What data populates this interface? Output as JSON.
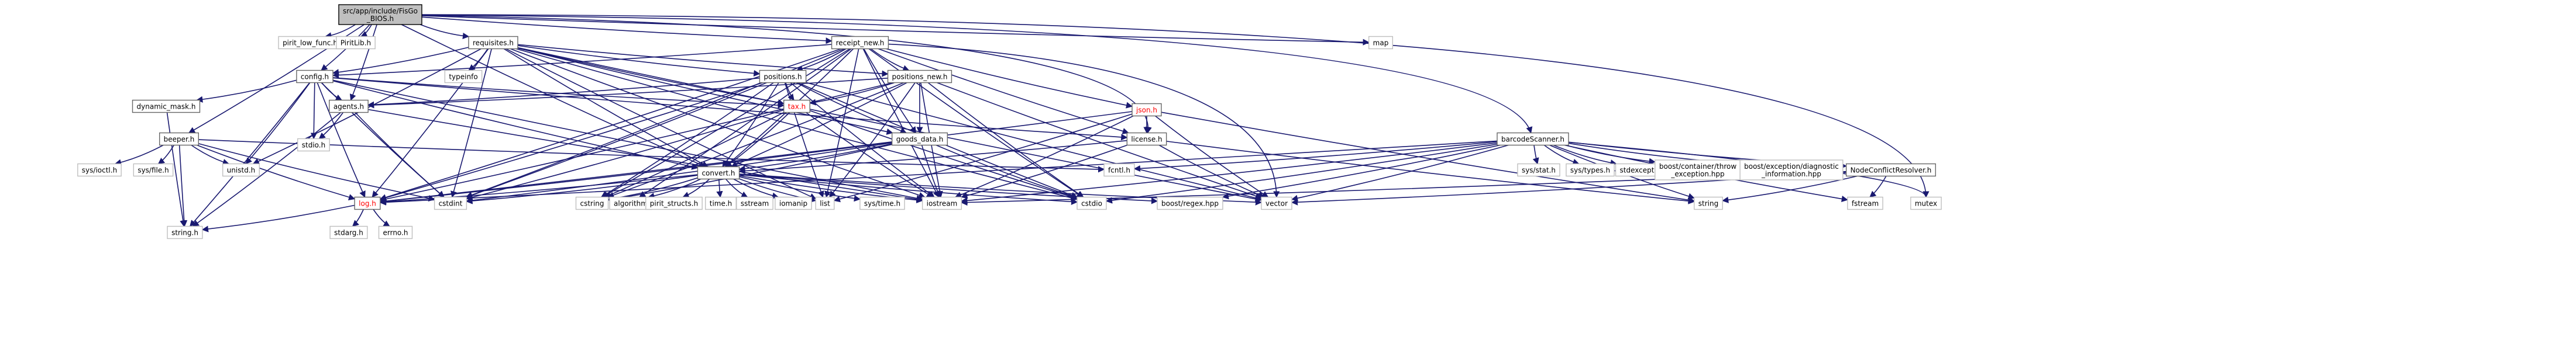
{
  "diagram": {
    "title": "include dependency graph",
    "root": "src/app/include/FisGo_BIOS.h",
    "nodes": [
      {
        "id": "root",
        "lines": [
          "src/app/include/FisGo",
          "_BIOS.h"
        ],
        "kind": "root"
      },
      {
        "id": "pirit_low_func",
        "lines": [
          "pirit_low_func.h"
        ],
        "kind": "external"
      },
      {
        "id": "piritlib",
        "lines": [
          "PiritLib.h"
        ],
        "kind": "external"
      },
      {
        "id": "requisites",
        "lines": [
          "requisites.h"
        ],
        "kind": "file"
      },
      {
        "id": "receipt_new",
        "lines": [
          "receipt_new.h"
        ],
        "kind": "file"
      },
      {
        "id": "map",
        "lines": [
          "map"
        ],
        "kind": "external"
      },
      {
        "id": "config",
        "lines": [
          "config.h"
        ],
        "kind": "file"
      },
      {
        "id": "typeinfo",
        "lines": [
          "typeinfo"
        ],
        "kind": "external"
      },
      {
        "id": "positions",
        "lines": [
          "positions.h"
        ],
        "kind": "file"
      },
      {
        "id": "positions_new",
        "lines": [
          "positions_new.h"
        ],
        "kind": "file"
      },
      {
        "id": "json",
        "lines": [
          "json.h"
        ],
        "kind": "file",
        "red": true
      },
      {
        "id": "barcodescanner",
        "lines": [
          "barcodeScanner.h"
        ],
        "kind": "file"
      },
      {
        "id": "dynamic_mask",
        "lines": [
          "dynamic_mask.h"
        ],
        "kind": "file"
      },
      {
        "id": "agents",
        "lines": [
          "agents.h"
        ],
        "kind": "file"
      },
      {
        "id": "tax",
        "lines": [
          "tax.h"
        ],
        "kind": "file",
        "red": true
      },
      {
        "id": "beeper",
        "lines": [
          "beeper.h"
        ],
        "kind": "file"
      },
      {
        "id": "stdio",
        "lines": [
          "stdio.h"
        ],
        "kind": "external"
      },
      {
        "id": "goods_data",
        "lines": [
          "goods_data.h"
        ],
        "kind": "file"
      },
      {
        "id": "license",
        "lines": [
          "license.h"
        ],
        "kind": "file"
      },
      {
        "id": "sys_ioctl",
        "lines": [
          "sys/ioctl.h"
        ],
        "kind": "external"
      },
      {
        "id": "sys_file",
        "lines": [
          "sys/file.h"
        ],
        "kind": "external"
      },
      {
        "id": "unistd",
        "lines": [
          "unistd.h"
        ],
        "kind": "external"
      },
      {
        "id": "fcntl",
        "lines": [
          "fcntl.h"
        ],
        "kind": "external"
      },
      {
        "id": "convert",
        "lines": [
          "convert.h"
        ],
        "kind": "file"
      },
      {
        "id": "sys_stat",
        "lines": [
          "sys/stat.h"
        ],
        "kind": "external"
      },
      {
        "id": "sys_types",
        "lines": [
          "sys/types.h"
        ],
        "kind": "external"
      },
      {
        "id": "stdexcept",
        "lines": [
          "stdexcept"
        ],
        "kind": "external"
      },
      {
        "id": "boost_throw",
        "lines": [
          "boost/container/throw",
          "_exception.hpp"
        ],
        "kind": "external"
      },
      {
        "id": "boost_diag",
        "lines": [
          "boost/exception/diagnostic",
          "_information.hpp"
        ],
        "kind": "external"
      },
      {
        "id": "nodeconflict",
        "lines": [
          "NodeConflictResolver.h"
        ],
        "kind": "file"
      },
      {
        "id": "log",
        "lines": [
          "log.h"
        ],
        "kind": "file",
        "red": true
      },
      {
        "id": "cstdint",
        "lines": [
          "cstdint"
        ],
        "kind": "external"
      },
      {
        "id": "cstring",
        "lines": [
          "cstring"
        ],
        "kind": "external"
      },
      {
        "id": "algorithm",
        "lines": [
          "algorithm"
        ],
        "kind": "external"
      },
      {
        "id": "pirit_structs",
        "lines": [
          "pirit_structs.h"
        ],
        "kind": "external"
      },
      {
        "id": "time",
        "lines": [
          "time.h"
        ],
        "kind": "external"
      },
      {
        "id": "sstream",
        "lines": [
          "sstream"
        ],
        "kind": "external"
      },
      {
        "id": "iomanip",
        "lines": [
          "iomanip"
        ],
        "kind": "external"
      },
      {
        "id": "list",
        "lines": [
          "list"
        ],
        "kind": "external"
      },
      {
        "id": "sys_time",
        "lines": [
          "sys/time.h"
        ],
        "kind": "external"
      },
      {
        "id": "iostream",
        "lines": [
          "iostream"
        ],
        "kind": "external"
      },
      {
        "id": "cstdio",
        "lines": [
          "cstdio"
        ],
        "kind": "external"
      },
      {
        "id": "boost_regex",
        "lines": [
          "boost/regex.hpp"
        ],
        "kind": "external"
      },
      {
        "id": "vector",
        "lines": [
          "vector"
        ],
        "kind": "external"
      },
      {
        "id": "string",
        "lines": [
          "string"
        ],
        "kind": "external"
      },
      {
        "id": "fstream",
        "lines": [
          "fstream"
        ],
        "kind": "external"
      },
      {
        "id": "mutex",
        "lines": [
          "mutex"
        ],
        "kind": "external"
      },
      {
        "id": "string_h",
        "lines": [
          "string.h"
        ],
        "kind": "external"
      },
      {
        "id": "stdarg",
        "lines": [
          "stdarg.h"
        ],
        "kind": "external"
      },
      {
        "id": "errno",
        "lines": [
          "errno.h"
        ],
        "kind": "external"
      }
    ],
    "edges": [
      [
        "root",
        "pirit_low_func"
      ],
      [
        "root",
        "piritlib"
      ],
      [
        "root",
        "requisites"
      ],
      [
        "root",
        "receipt_new"
      ],
      [
        "root",
        "map"
      ],
      [
        "root",
        "config"
      ],
      [
        "root",
        "agents"
      ],
      [
        "root",
        "beeper"
      ],
      [
        "root",
        "license"
      ],
      [
        "root",
        "barcodescanner"
      ],
      [
        "root",
        "mutex"
      ],
      [
        "root",
        "convert"
      ],
      [
        "requisites",
        "config"
      ],
      [
        "requisites",
        "typeinfo"
      ],
      [
        "requisites",
        "positions"
      ],
      [
        "requisites",
        "positions_new"
      ],
      [
        "requisites",
        "goods_data"
      ],
      [
        "requisites",
        "tax"
      ],
      [
        "requisites",
        "log"
      ],
      [
        "requisites",
        "cstdint"
      ],
      [
        "requisites",
        "unistd"
      ],
      [
        "requisites",
        "list"
      ],
      [
        "requisites",
        "iostream"
      ],
      [
        "requisites",
        "cstdio"
      ],
      [
        "requisites",
        "vector"
      ],
      [
        "requisites",
        "convert"
      ],
      [
        "receipt_new",
        "config"
      ],
      [
        "receipt_new",
        "positions"
      ],
      [
        "receipt_new",
        "positions_new"
      ],
      [
        "receipt_new",
        "json"
      ],
      [
        "receipt_new",
        "goods_data"
      ],
      [
        "receipt_new",
        "license"
      ],
      [
        "receipt_new",
        "convert"
      ],
      [
        "receipt_new",
        "log"
      ],
      [
        "receipt_new",
        "cstdint"
      ],
      [
        "receipt_new",
        "cstring"
      ],
      [
        "receipt_new",
        "list"
      ],
      [
        "receipt_new",
        "iostream"
      ],
      [
        "receipt_new",
        "cstdio"
      ],
      [
        "receipt_new",
        "vector"
      ],
      [
        "receipt_new",
        "algorithm"
      ],
      [
        "config",
        "dynamic_mask"
      ],
      [
        "config",
        "agents"
      ],
      [
        "config",
        "stdio"
      ],
      [
        "config",
        "unistd"
      ],
      [
        "config",
        "tax"
      ],
      [
        "config",
        "log"
      ],
      [
        "config",
        "convert"
      ],
      [
        "config",
        "cstdint"
      ],
      [
        "config",
        "iostream"
      ],
      [
        "config",
        "string_h"
      ],
      [
        "config",
        "license"
      ],
      [
        "dynamic_mask",
        "string_h"
      ],
      [
        "agents",
        "stdio"
      ],
      [
        "agents",
        "cstdint"
      ],
      [
        "agents",
        "iostream"
      ],
      [
        "agents",
        "string_h"
      ],
      [
        "positions",
        "tax"
      ],
      [
        "positions",
        "goods_data"
      ],
      [
        "positions",
        "convert"
      ],
      [
        "positions",
        "log"
      ],
      [
        "positions",
        "cstring"
      ],
      [
        "positions",
        "list"
      ],
      [
        "positions",
        "iostream"
      ],
      [
        "positions",
        "cstdint"
      ],
      [
        "positions",
        "vector"
      ],
      [
        "positions",
        "agents"
      ],
      [
        "positions",
        "cstdio"
      ],
      [
        "positions_new",
        "tax"
      ],
      [
        "positions_new",
        "goods_data"
      ],
      [
        "positions_new",
        "convert"
      ],
      [
        "positions_new",
        "log"
      ],
      [
        "positions_new",
        "iostream"
      ],
      [
        "positions_new",
        "vector"
      ],
      [
        "positions_new",
        "agents"
      ],
      [
        "positions_new",
        "cstdio"
      ],
      [
        "positions_new",
        "list"
      ],
      [
        "positions_new",
        "cstring"
      ],
      [
        "tax",
        "convert"
      ],
      [
        "tax",
        "cstring"
      ],
      [
        "tax",
        "iostream"
      ],
      [
        "tax",
        "cstdint"
      ],
      [
        "tax",
        "cstdio"
      ],
      [
        "json",
        "license"
      ],
      [
        "json",
        "log"
      ],
      [
        "json",
        "iostream"
      ],
      [
        "json",
        "string"
      ],
      [
        "json",
        "vector"
      ],
      [
        "json",
        "list"
      ],
      [
        "beeper",
        "sys_ioctl"
      ],
      [
        "beeper",
        "sys_file"
      ],
      [
        "beeper",
        "unistd"
      ],
      [
        "beeper",
        "fcntl"
      ],
      [
        "beeper",
        "log"
      ],
      [
        "beeper",
        "string_h"
      ],
      [
        "beeper",
        "cstdint"
      ],
      [
        "goods_data",
        "convert"
      ],
      [
        "goods_data",
        "log"
      ],
      [
        "goods_data",
        "iostream"
      ],
      [
        "goods_data",
        "cstring"
      ],
      [
        "goods_data",
        "cstdint"
      ],
      [
        "goods_data",
        "cstdio"
      ],
      [
        "license",
        "convert"
      ],
      [
        "license",
        "iostream"
      ],
      [
        "license",
        "vector"
      ],
      [
        "license",
        "string"
      ],
      [
        "convert",
        "log"
      ],
      [
        "convert",
        "cstdint"
      ],
      [
        "convert",
        "cstring"
      ],
      [
        "convert",
        "algorithm"
      ],
      [
        "convert",
        "pirit_structs"
      ],
      [
        "convert",
        "time"
      ],
      [
        "convert",
        "sstream"
      ],
      [
        "convert",
        "iomanip"
      ],
      [
        "convert",
        "list"
      ],
      [
        "convert",
        "sys_time"
      ],
      [
        "convert",
        "iostream"
      ],
      [
        "convert",
        "cstdio"
      ],
      [
        "convert",
        "boost_regex"
      ],
      [
        "convert",
        "vector"
      ],
      [
        "barcodescanner",
        "fcntl"
      ],
      [
        "barcodescanner",
        "sys_stat"
      ],
      [
        "barcodescanner",
        "sys_types"
      ],
      [
        "barcodescanner",
        "stdexcept"
      ],
      [
        "barcodescanner",
        "boost_throw"
      ],
      [
        "barcodescanner",
        "boost_diag"
      ],
      [
        "barcodescanner",
        "nodeconflict"
      ],
      [
        "barcodescanner",
        "log"
      ],
      [
        "barcodescanner",
        "iostream"
      ],
      [
        "barcodescanner",
        "vector"
      ],
      [
        "barcodescanner",
        "string"
      ],
      [
        "barcodescanner",
        "boost_regex"
      ],
      [
        "barcodescanner",
        "mutex"
      ],
      [
        "barcodescanner",
        "fstream"
      ],
      [
        "barcodescanner",
        "cstdio"
      ],
      [
        "nodeconflict",
        "string"
      ],
      [
        "nodeconflict",
        "fstream"
      ],
      [
        "nodeconflict",
        "vector"
      ],
      [
        "nodeconflict",
        "iostream"
      ],
      [
        "log",
        "string_h"
      ],
      [
        "log",
        "stdarg"
      ],
      [
        "log",
        "errno"
      ]
    ]
  }
}
